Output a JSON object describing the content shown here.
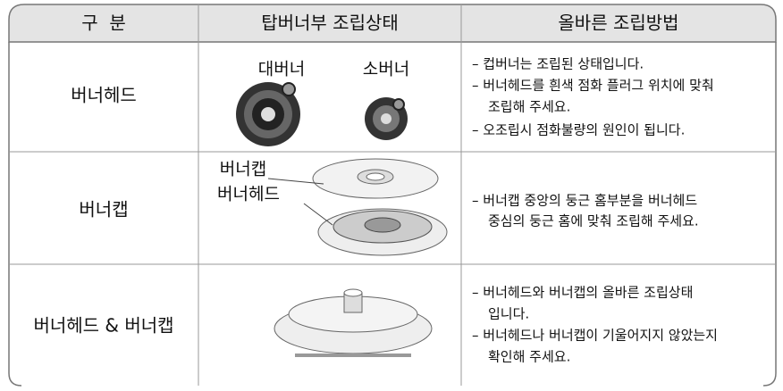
{
  "table": {
    "headers": [
      "구  분",
      "탑버너부 조립상태",
      "올바른 조립방법"
    ],
    "rows": [
      {
        "label": "버너헤드",
        "image_labels": [
          "대버너",
          "소버너"
        ],
        "instructions": [
          "– 컵버너는 조립된 상태입니다.",
          "– 버너헤드를 흰색 점화 플러그 위치에 맞춰",
          "조립해 주세요.",
          "– 오조립시 점화불량의 원인이 됩니다."
        ]
      },
      {
        "label": "버너캡",
        "image_labels": [
          "버너캡",
          "버너헤드"
        ],
        "instructions": [
          "– 버너캡 중앙의 둥근 홈부분을 버너헤드",
          "중심의 둥근 홈에 맞춰 조립해 주세요."
        ]
      },
      {
        "label": "버너헤드 & 버너캡",
        "image_labels": [],
        "instructions": [
          "– 버너헤드와 버너캡의 올바른 조립상태",
          "입니다.",
          "– 버너헤드나 버너캡이 기울어지지 않았는지",
          "확인해 주세요."
        ]
      }
    ]
  }
}
